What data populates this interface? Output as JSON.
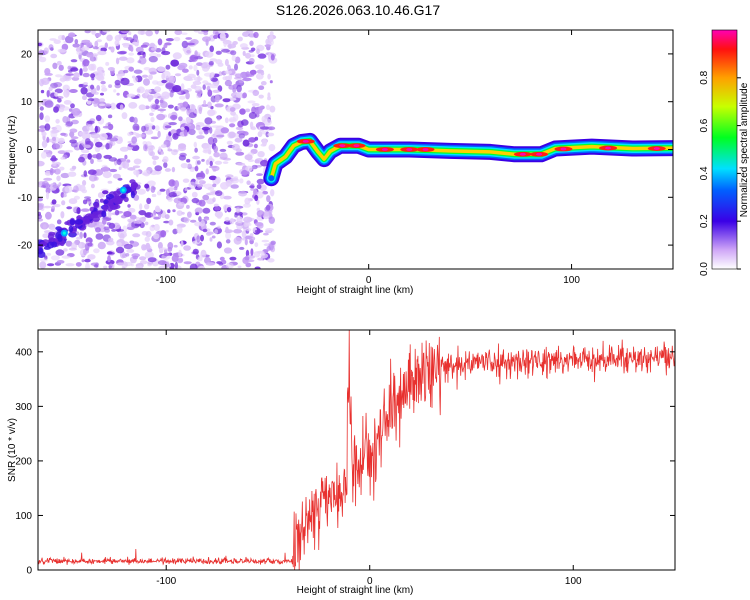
{
  "figure_title": "S126.2026.063.10.46.G17",
  "chart_data": [
    {
      "type": "heatmap",
      "title": "S126.2026.063.10.46.G17",
      "xlabel": "Height of straight line (km)",
      "ylabel": "Frequency (Hz)",
      "xlim": [
        -163,
        150
      ],
      "ylim": [
        -25,
        25
      ],
      "xticks": [
        -100,
        0,
        100
      ],
      "xtick_labels": [
        "-100",
        "0",
        "100"
      ],
      "yticks": [
        -20,
        -10,
        0,
        10,
        20
      ],
      "ytick_labels": [
        "-20",
        "-10",
        "0",
        "10",
        "20"
      ],
      "colorbar": {
        "label": "Normalized spectral amplitude",
        "range": [
          0,
          1
        ],
        "ticks": [
          0.0,
          0.2,
          0.4,
          0.6,
          0.8
        ],
        "tick_labels": [
          "0.0",
          "0.2",
          "0.4",
          "0.6",
          "0.8"
        ]
      },
      "noise_region": {
        "x_range": [
          -163,
          -47
        ],
        "y_range": [
          -25,
          25
        ]
      },
      "diagonal_track": {
        "points": [
          {
            "x": -163,
            "y": -21
          },
          {
            "x": -150,
            "y": -17.5
          },
          {
            "x": -130,
            "y": -12
          },
          {
            "x": -115,
            "y": -8
          },
          {
            "x": -100,
            "y": -6
          },
          {
            "x": -47,
            "y": -6
          }
        ]
      },
      "ridge_line": {
        "points": [
          {
            "x": -48,
            "y": -6
          },
          {
            "x": -46,
            "y": -3
          },
          {
            "x": -41,
            "y": -1.5
          },
          {
            "x": -37,
            "y": 0.8
          },
          {
            "x": -33,
            "y": 1.6
          },
          {
            "x": -29,
            "y": 1.8
          },
          {
            "x": -25,
            "y": -0.5
          },
          {
            "x": -22,
            "y": -2
          },
          {
            "x": -19,
            "y": -0.4
          },
          {
            "x": -14,
            "y": 0.8
          },
          {
            "x": -5,
            "y": 0.8
          },
          {
            "x": 0,
            "y": 0
          },
          {
            "x": 20,
            "y": 0
          },
          {
            "x": 40,
            "y": -0.3
          },
          {
            "x": 60,
            "y": -0.5
          },
          {
            "x": 72,
            "y": -1
          },
          {
            "x": 85,
            "y": -1
          },
          {
            "x": 92,
            "y": 0.2
          },
          {
            "x": 110,
            "y": 0.6
          },
          {
            "x": 130,
            "y": 0.2
          },
          {
            "x": 150,
            "y": 0.3
          }
        ],
        "hotspots": [
          {
            "x": -31,
            "y": 1.7,
            "amp": 0.9
          },
          {
            "x": -13,
            "y": 0.8,
            "amp": 0.95
          },
          {
            "x": -6,
            "y": 0.8,
            "amp": 0.9
          },
          {
            "x": 8,
            "y": 0,
            "amp": 0.95
          },
          {
            "x": 20,
            "y": 0,
            "amp": 0.95
          },
          {
            "x": 28,
            "y": 0,
            "amp": 0.9
          },
          {
            "x": 76,
            "y": -1,
            "amp": 0.95
          },
          {
            "x": 84,
            "y": -1,
            "amp": 0.95
          },
          {
            "x": 96,
            "y": 0.1,
            "amp": 0.95
          },
          {
            "x": 118,
            "y": 0.3,
            "amp": 0.95
          },
          {
            "x": 142,
            "y": 0.2,
            "amp": 0.95
          }
        ]
      }
    },
    {
      "type": "line",
      "xlabel": "Height of straight line (km)",
      "ylabel": "SNR (10 * v/v)",
      "xlim": [
        -163,
        150
      ],
      "ylim": [
        0,
        440
      ],
      "xticks": [
        -100,
        0,
        100
      ],
      "xtick_labels": [
        "-100",
        "0",
        "100"
      ],
      "yticks": [
        0,
        100,
        200,
        300,
        400
      ],
      "ytick_labels": [
        "0",
        "100",
        "200",
        "300",
        "400"
      ],
      "line_color": "#e8312f",
      "trend": [
        {
          "x": -163,
          "y": 14
        },
        {
          "x": -100,
          "y": 14
        },
        {
          "x": -38,
          "y": 14
        },
        {
          "x": -33,
          "y": 80
        },
        {
          "x": -25,
          "y": 120
        },
        {
          "x": -15,
          "y": 140
        },
        {
          "x": -8,
          "y": 170
        },
        {
          "x": 0,
          "y": 220
        },
        {
          "x": 10,
          "y": 290
        },
        {
          "x": 20,
          "y": 340
        },
        {
          "x": 30,
          "y": 370
        },
        {
          "x": 50,
          "y": 380
        },
        {
          "x": 100,
          "y": 385
        },
        {
          "x": 150,
          "y": 392
        }
      ],
      "spike": {
        "x": -10,
        "y": 440
      }
    }
  ]
}
